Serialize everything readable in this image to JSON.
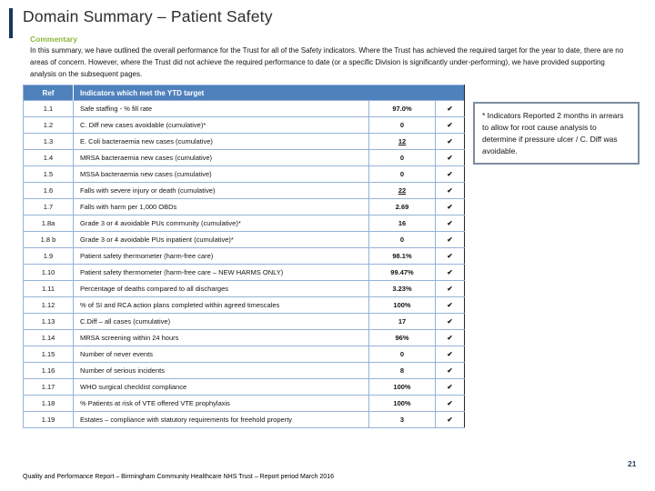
{
  "slide": {
    "title": "Domain Summary – Patient Safety",
    "page_number": "21",
    "footer": "Quality and Performance Report – Birmingham Community Healthcare NHS Trust – Report period March 2016"
  },
  "commentary": {
    "label": "Commentary",
    "body": "In this summary, we have outlined the overall performance for the Trust for all of the Safety indicators. Where the Trust has achieved the required target for the year to date, there are no areas of concern. However, where the Trust did not achieve the required performance to date (or a specific Division is significantly under-performing), we have provided supporting analysis on the subsequent pages."
  },
  "table": {
    "header": {
      "ref": "Ref",
      "indicator": "Indicators which met the YTD target"
    },
    "check_symbol": "✔",
    "rows": [
      {
        "ref": "1.1",
        "indicator": "Safe staffing - % fill rate",
        "value": "97.0%",
        "met": true,
        "underline": false
      },
      {
        "ref": "1.2",
        "indicator": "C. Diff new cases avoidable (cumulative)*",
        "value": "0",
        "met": true,
        "underline": false
      },
      {
        "ref": "1.3",
        "indicator": "E. Coli bacteraemia new cases (cumulative)",
        "value": "12",
        "met": true,
        "underline": true
      },
      {
        "ref": "1.4",
        "indicator": "MRSA bacteraemia new cases (cumulative)",
        "value": "0",
        "met": true,
        "underline": false
      },
      {
        "ref": "1.5",
        "indicator": "MSSA bacteraemia new cases (cumulative)",
        "value": "0",
        "met": true,
        "underline": false
      },
      {
        "ref": "1.6",
        "indicator": "Falls with severe injury or death (cumulative)",
        "value": "22",
        "met": true,
        "underline": true
      },
      {
        "ref": "1.7",
        "indicator": "Falls with harm per 1,000 OBDs",
        "value": "2.69",
        "met": true,
        "underline": false
      },
      {
        "ref": "1.8a",
        "indicator": "Grade 3 or 4 avoidable PUs community (cumulative)*",
        "value": "16",
        "met": true,
        "underline": false
      },
      {
        "ref": "1.8 b",
        "indicator": "Grade 3 or 4 avoidable PUs inpatient (cumulative)*",
        "value": "0",
        "met": true,
        "underline": false
      },
      {
        "ref": "1.9",
        "indicator": "Patient safety thermometer (harm-free care)",
        "value": "98.1%",
        "met": true,
        "underline": false
      },
      {
        "ref": "1.10",
        "indicator": "Patient safety thermometer (harm-free care – NEW HARMS ONLY)",
        "value": "99.47%",
        "met": true,
        "underline": false
      },
      {
        "ref": "1.11",
        "indicator": "Percentage of deaths compared to all discharges",
        "value": "3.23%",
        "met": true,
        "underline": false
      },
      {
        "ref": "1.12",
        "indicator": "% of SI and RCA action plans completed within agreed timescales",
        "value": "100%",
        "met": true,
        "underline": false
      },
      {
        "ref": "1.13",
        "indicator": "C.Diff – all cases (cumulative)",
        "value": "17",
        "met": true,
        "underline": false
      },
      {
        "ref": "1.14",
        "indicator": "MRSA screening within 24 hours",
        "value": "96%",
        "met": true,
        "underline": false
      },
      {
        "ref": "1.15",
        "indicator": "Number of never events",
        "value": "0",
        "met": true,
        "underline": false
      },
      {
        "ref": "1.16",
        "indicator": "Number of serious incidents",
        "value": "8",
        "met": true,
        "underline": false
      },
      {
        "ref": "1.17",
        "indicator": "WHO surgical checklist compliance",
        "value": "100%",
        "met": true,
        "underline": false
      },
      {
        "ref": "1.18",
        "indicator": "% Patients at risk of VTE offered VTE prophylaxis",
        "value": "100%",
        "met": true,
        "underline": false
      },
      {
        "ref": "1.19",
        "indicator": "Estates – compliance with statutory requirements for freehold property",
        "value": "3",
        "met": true,
        "underline": false
      }
    ]
  },
  "sidenote": "* Indicators Reported 2 months in arrears to allow for root cause analysis to determine if pressure ulcer / C. Diff was avoidable.",
  "colors": {
    "header_bg": "#4F81BD",
    "border_light": "#95B3D7",
    "border_dark": "#262626",
    "check_green": "#9BBB59",
    "commentary_green": "#8DB63C",
    "accent_navy": "#17375E"
  }
}
